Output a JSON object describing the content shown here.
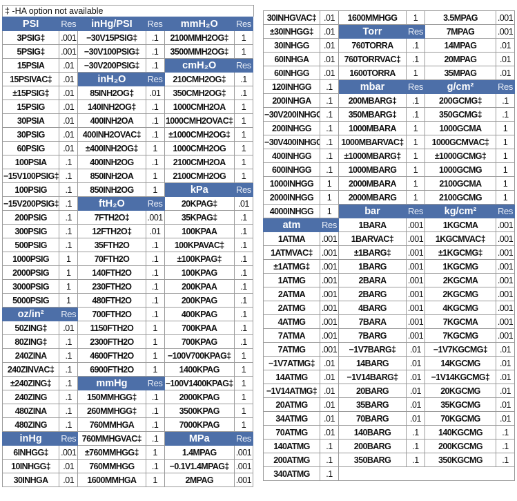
{
  "note": "‡ -HA option not available",
  "colors": {
    "header_bg": "#4d6fa8",
    "header_text": "#ffffff",
    "border": "#9a9a9a"
  },
  "left": {
    "rows": [
      [
        {
          "h": "PSI",
          "r": "Res"
        },
        {
          "h": "inHg/PSI",
          "r": "Res"
        },
        {
          "h": "mmH₂O",
          "r": "Res"
        }
      ],
      [
        [
          "3PSIG‡",
          ".001"
        ],
        [
          "−30V15PSIG‡",
          ".1"
        ],
        [
          "2100MMH2OG‡",
          "1"
        ]
      ],
      [
        [
          "5PSIG‡",
          ".001"
        ],
        [
          "−30V100PSIG‡",
          ".1"
        ],
        [
          "3500MMH2OG‡",
          "1"
        ]
      ],
      [
        [
          "15PSIA",
          ".01"
        ],
        [
          "−30V200PSIG‡",
          ".1"
        ],
        {
          "h": "cmH₂O",
          "r": "Res"
        }
      ],
      [
        [
          "15PSIVAC‡",
          ".01"
        ],
        {
          "h": "inH₂O",
          "r": "Res"
        },
        [
          "210CMH2OG‡",
          ".1"
        ]
      ],
      [
        [
          "±15PSIG‡",
          ".01"
        ],
        [
          "85INH2OG‡",
          ".01"
        ],
        [
          "350CMH2OG‡",
          ".1"
        ]
      ],
      [
        [
          "15PSIG",
          ".01"
        ],
        [
          "140INH2OG‡",
          ".1"
        ],
        [
          "1000CMH2OA",
          "1"
        ]
      ],
      [
        [
          "30PSIA",
          ".01"
        ],
        [
          "400INH2OA",
          ".1"
        ],
        [
          "1000CMH2OVAC‡",
          "1"
        ]
      ],
      [
        [
          "30PSIG",
          ".01"
        ],
        [
          "400INH2OVAC‡",
          ".1"
        ],
        [
          "±1000CMH2OG‡",
          "1"
        ]
      ],
      [
        [
          "60PSIG",
          ".01"
        ],
        [
          "±400INH2OG‡",
          "1"
        ],
        [
          "1000CMH2OG",
          "1"
        ]
      ],
      [
        [
          "100PSIA",
          ".1"
        ],
        [
          "400INH2OG",
          ".1"
        ],
        [
          "2100CMH2OA",
          "1"
        ]
      ],
      [
        [
          "−15V100PSIG‡",
          ".1"
        ],
        [
          "850INH2OA",
          "1"
        ],
        [
          "2100CMH2OG",
          "1"
        ]
      ],
      [
        [
          "100PSIG",
          ".1"
        ],
        [
          "850INH2OG",
          "1"
        ],
        {
          "h": "kPa",
          "r": "Res"
        }
      ],
      [
        [
          "−15V200PSIG‡",
          ".1"
        ],
        {
          "h": "ftH₂O",
          "r": "Res"
        },
        [
          "20KPAG‡",
          ".01"
        ]
      ],
      [
        [
          "200PSIG",
          ".1"
        ],
        [
          "7FTH2O‡",
          ".001"
        ],
        [
          "35KPAG‡",
          ".1"
        ]
      ],
      [
        [
          "300PSIG",
          ".1"
        ],
        [
          "12FTH2O‡",
          ".01"
        ],
        [
          "100KPAA",
          ".1"
        ]
      ],
      [
        [
          "500PSIG",
          ".1"
        ],
        [
          "35FTH2O",
          ".1"
        ],
        [
          "100KPAVAC‡",
          ".1"
        ]
      ],
      [
        [
          "1000PSIG",
          "1"
        ],
        [
          "70FTH2O",
          ".1"
        ],
        [
          "±100KPAG‡",
          ".1"
        ]
      ],
      [
        [
          "2000PSIG",
          "1"
        ],
        [
          "140FTH2O",
          ".1"
        ],
        [
          "100KPAG",
          ".1"
        ]
      ],
      [
        [
          "3000PSIG",
          "1"
        ],
        [
          "230FTH2O",
          ".1"
        ],
        [
          "200KPAA",
          ".1"
        ]
      ],
      [
        [
          "5000PSIG",
          "1"
        ],
        [
          "480FTH2O",
          ".1"
        ],
        [
          "200KPAG",
          ".1"
        ]
      ],
      [
        {
          "h": "oz/in²",
          "r": "Res"
        },
        [
          "700FTH2O",
          ".1"
        ],
        [
          "400KPAG",
          ".1"
        ]
      ],
      [
        [
          "50ZING‡",
          ".01"
        ],
        [
          "1150FTH2O",
          "1"
        ],
        [
          "700KPAA",
          ".1"
        ]
      ],
      [
        [
          "80ZING‡",
          ".1"
        ],
        [
          "2300FTH2O",
          "1"
        ],
        [
          "700KPAG",
          ".1"
        ]
      ],
      [
        [
          "240ZINA",
          ".1"
        ],
        [
          "4600FTH2O",
          "1"
        ],
        [
          "−100V700KPAG‡",
          "1"
        ]
      ],
      [
        [
          "240ZINVAC‡",
          ".1"
        ],
        [
          "6900FTH2O",
          "1"
        ],
        [
          "1400KPAG",
          "1"
        ]
      ],
      [
        [
          "±240ZING‡",
          ".1"
        ],
        {
          "h": "mmHg",
          "r": "Res"
        },
        [
          "−100V1400KPAG‡",
          "1"
        ]
      ],
      [
        [
          "240ZING",
          ".1"
        ],
        [
          "150MMHGG‡",
          ".1"
        ],
        [
          "2000KPAG",
          "1"
        ]
      ],
      [
        [
          "480ZINA",
          ".1"
        ],
        [
          "260MMHGG‡",
          ".1"
        ],
        [
          "3500KPAG",
          "1"
        ]
      ],
      [
        [
          "480ZING",
          ".1"
        ],
        [
          "760MMHGA",
          ".1"
        ],
        [
          "7000KPAG",
          "1"
        ]
      ],
      [
        {
          "h": "inHg",
          "r": "Res"
        },
        [
          "760MMHGVAC‡",
          ".1"
        ],
        {
          "h": "MPa",
          "r": "Res"
        }
      ],
      [
        [
          "6INHGG‡",
          ".001"
        ],
        [
          "±760MMHGG‡",
          "1"
        ],
        [
          "1.4MPAG",
          ".001"
        ]
      ],
      [
        [
          "10INHGG‡",
          ".01"
        ],
        [
          "760MMHGG",
          ".1"
        ],
        [
          "−0.1V1.4MPAG‡",
          ".001"
        ]
      ],
      [
        [
          "30INHGA",
          ".01"
        ],
        [
          "1600MMHGA",
          "1"
        ],
        [
          "2MPAG",
          ".001"
        ]
      ]
    ]
  },
  "right": {
    "rows": [
      [
        [
          "30INHGVAC‡",
          ".01"
        ],
        [
          "1600MMHGG",
          "1"
        ],
        [
          "3.5MPAG",
          ".001"
        ]
      ],
      [
        [
          "±30INHGG‡",
          ".01"
        ],
        {
          "h": "Torr",
          "r": "Res"
        },
        [
          "7MPAG",
          ".001"
        ]
      ],
      [
        [
          "30INHGG",
          ".01"
        ],
        [
          "760TORRA",
          ".1"
        ],
        [
          "14MPAG",
          ".01"
        ]
      ],
      [
        [
          "60INHGA",
          ".01"
        ],
        [
          "760TORRVAC‡",
          ".1"
        ],
        [
          "20MPAG",
          ".01"
        ]
      ],
      [
        [
          "60INHGG",
          ".01"
        ],
        [
          "1600TORRA",
          "1"
        ],
        [
          "35MPAG",
          ".01"
        ]
      ],
      [
        [
          "120INHGG",
          ".1"
        ],
        {
          "h": "mbar",
          "r": "Res"
        },
        {
          "h": "g/cm²",
          "r": "Res"
        }
      ],
      [
        [
          "200INHGA",
          ".1"
        ],
        [
          "200MBARG‡",
          ".1"
        ],
        [
          "200GCMG‡",
          ".1"
        ]
      ],
      [
        [
          "−30V200INHGG‡",
          ".1"
        ],
        [
          "350MBARG‡",
          ".1"
        ],
        [
          "350GCMG‡",
          ".1"
        ]
      ],
      [
        [
          "200INHGG",
          ".1"
        ],
        [
          "1000MBARA",
          "1"
        ],
        [
          "1000GCMA",
          "1"
        ]
      ],
      [
        [
          "−30V400INHGG‡",
          ".1"
        ],
        [
          "1000MBARVAC‡",
          "1"
        ],
        [
          "1000GCMVAC‡",
          "1"
        ]
      ],
      [
        [
          "400INHGG",
          ".1"
        ],
        [
          "±1000MBARG‡",
          "1"
        ],
        [
          "±1000GCMG‡",
          "1"
        ]
      ],
      [
        [
          "600INHGG",
          ".1"
        ],
        [
          "1000MBARG",
          "1"
        ],
        [
          "1000GCMG",
          "1"
        ]
      ],
      [
        [
          "1000INHGG",
          "1"
        ],
        [
          "2000MBARA",
          "1"
        ],
        [
          "2100GCMA",
          "1"
        ]
      ],
      [
        [
          "2000INHGG",
          "1"
        ],
        [
          "2000MBARG",
          "1"
        ],
        [
          "2100GCMG",
          "1"
        ]
      ],
      [
        [
          "4000INHGG",
          "1"
        ],
        {
          "h": "bar",
          "r": "Res"
        },
        {
          "h": "kg/cm²",
          "r": "Res"
        }
      ],
      [
        {
          "h": "atm",
          "r": "Res"
        },
        [
          "1BARA",
          ".001"
        ],
        [
          "1KGCMA",
          ".001"
        ]
      ],
      [
        [
          "1ATMA",
          ".001"
        ],
        [
          "1BARVAC‡",
          ".001"
        ],
        [
          "1KGCMVAC‡",
          ".001"
        ]
      ],
      [
        [
          "1ATMVAC‡",
          ".001"
        ],
        [
          "±1BARG‡",
          ".001"
        ],
        [
          "±1KGCMG‡",
          ".001"
        ]
      ],
      [
        [
          "±1ATMG‡",
          ".001"
        ],
        [
          "1BARG",
          ".001"
        ],
        [
          "1KGCMG",
          ".001"
        ]
      ],
      [
        [
          "1ATMG",
          ".001"
        ],
        [
          "2BARA",
          ".001"
        ],
        [
          "2KGCMA",
          ".001"
        ]
      ],
      [
        [
          "2ATMA",
          ".001"
        ],
        [
          "2BARG",
          ".001"
        ],
        [
          "2KGCMG",
          ".001"
        ]
      ],
      [
        [
          "2ATMG",
          ".001"
        ],
        [
          "4BARG",
          ".001"
        ],
        [
          "4KGCMG",
          ".001"
        ]
      ],
      [
        [
          "4ATMG",
          ".001"
        ],
        [
          "7BARA",
          ".001"
        ],
        [
          "7KGCMA",
          ".001"
        ]
      ],
      [
        [
          "7ATMA",
          ".001"
        ],
        [
          "7BARG",
          ".001"
        ],
        [
          "7KGCMG",
          ".001"
        ]
      ],
      [
        [
          "7ATMG",
          ".001"
        ],
        [
          "−1V7BARG‡",
          ".01"
        ],
        [
          "−1V7KGCMG‡",
          ".01"
        ]
      ],
      [
        [
          "−1V7ATMG‡",
          ".01"
        ],
        [
          "14BARG",
          ".01"
        ],
        [
          "14KGCMG",
          ".01"
        ]
      ],
      [
        [
          "14ATMG",
          ".01"
        ],
        [
          "−1V14BARG‡",
          ".01"
        ],
        [
          "−1V14KGCMG‡",
          ".01"
        ]
      ],
      [
        [
          "−1V14ATMG‡",
          ".01"
        ],
        [
          "20BARG",
          ".01"
        ],
        [
          "20KGCMG",
          ".01"
        ]
      ],
      [
        [
          "20ATMG",
          ".01"
        ],
        [
          "35BARG",
          ".01"
        ],
        [
          "35KGCMG",
          ".01"
        ]
      ],
      [
        [
          "34ATMG",
          ".01"
        ],
        [
          "70BARG",
          ".01"
        ],
        [
          "70KGCMG",
          ".01"
        ]
      ],
      [
        [
          "70ATMG",
          ".01"
        ],
        [
          "140BARG",
          ".1"
        ],
        [
          "140KGCMG",
          ".1"
        ]
      ],
      [
        [
          "140ATMG",
          ".1"
        ],
        [
          "200BARG",
          ".1"
        ],
        [
          "200KGCMG",
          ".1"
        ]
      ],
      [
        [
          "200ATMG",
          ".1"
        ],
        [
          "350BARG",
          ".1"
        ],
        [
          "350KGCMG",
          ".1"
        ]
      ],
      [
        [
          "340ATMG",
          ".1"
        ]
      ]
    ]
  }
}
